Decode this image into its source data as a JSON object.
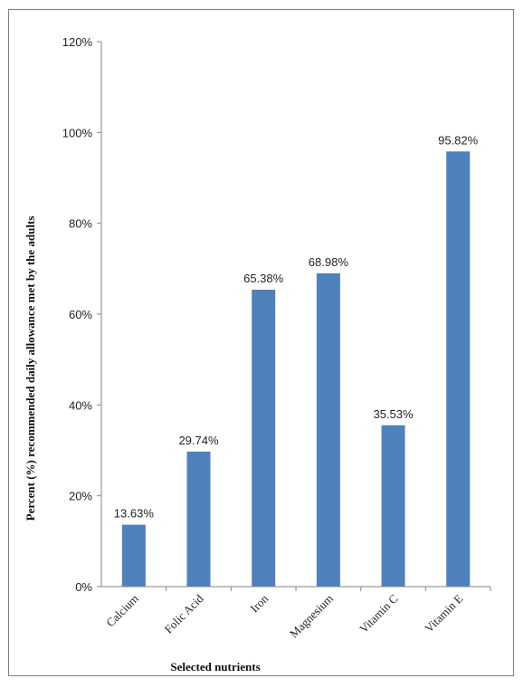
{
  "chart_data": {
    "type": "bar",
    "title": "",
    "xlabel": "Selected nutrients",
    "ylabel": "Percent (%) recommended daily allowance met by the adults",
    "categories": [
      "Calcium",
      "Folic Acid",
      "Iron",
      "Magnesium",
      "Vitamin C",
      "Vitamin E"
    ],
    "values": [
      13.63,
      29.74,
      65.38,
      68.98,
      35.53,
      95.82
    ],
    "data_labels": [
      "13.63%",
      "29.74%",
      "65.38%",
      "68.98%",
      "35.53%",
      "95.82%"
    ],
    "ylim": [
      0,
      120
    ],
    "yticks": [
      0,
      20,
      40,
      60,
      80,
      100,
      120
    ],
    "ytick_labels": [
      "0%",
      "20%",
      "40%",
      "60%",
      "80%",
      "100%",
      "120%"
    ],
    "bar_color": "#4f81bd",
    "grid": false,
    "legend": "none"
  }
}
